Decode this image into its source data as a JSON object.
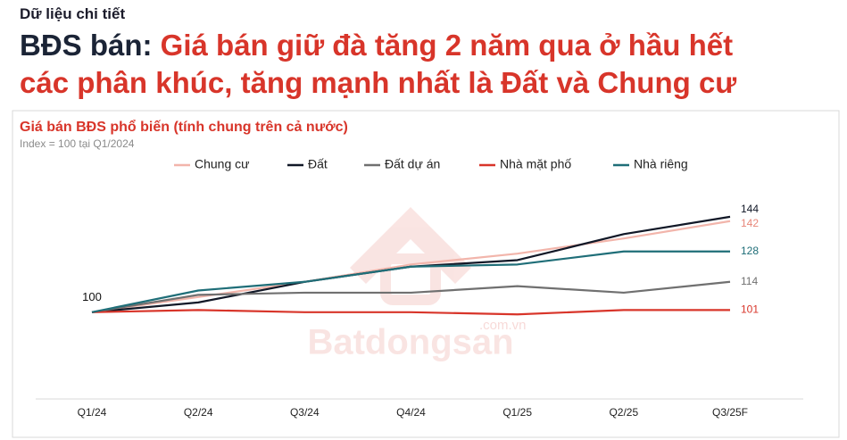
{
  "header": {
    "kicker": "Dữ liệu chi tiết",
    "title_prefix": "BĐS bán:",
    "title_lines": [
      "Giá bán giữ đà tăng 2 năm qua ở hầu hết",
      "các phân khúc, tăng mạnh nhất là Đất và Chung cư"
    ]
  },
  "chart_data": {
    "type": "line",
    "title": "Giá bán BĐS phổ biến (tính chung trên cả nước)",
    "subtitle": "Index = 100 tại Q1/2024",
    "watermark": {
      "brand": "Batdongsan",
      "domain": ".com.vn"
    },
    "categories": [
      "Q1/24",
      "Q2/24",
      "Q3/24",
      "Q4/24",
      "Q1/25",
      "Q2/25",
      "Q3/25F"
    ],
    "ylim": [
      60,
      160
    ],
    "grid": false,
    "legend": "top",
    "series": [
      {
        "name": "Chung cư",
        "color": "#f2b5ab",
        "label_color": "#e8877a",
        "values": [
          100,
          107,
          114,
          122,
          127,
          134,
          142
        ]
      },
      {
        "name": "Đất",
        "color": "#111827",
        "label_color": "#111827",
        "values": [
          100,
          104.5,
          114,
          121,
          124,
          136,
          144
        ]
      },
      {
        "name": "Đất dự án",
        "color": "#707070",
        "label_color": "#707070",
        "values": [
          100,
          108,
          109,
          109,
          112,
          109,
          114
        ]
      },
      {
        "name": "Nhà mặt phố",
        "color": "#d8352a",
        "label_color": "#d8352a",
        "values": [
          100,
          101,
          100,
          100,
          99,
          101,
          101
        ]
      },
      {
        "name": "Nhà riêng",
        "color": "#1f6e78",
        "label_color": "#1f6e78",
        "values": [
          100,
          110,
          114,
          121,
          122,
          128,
          128
        ]
      }
    ]
  }
}
